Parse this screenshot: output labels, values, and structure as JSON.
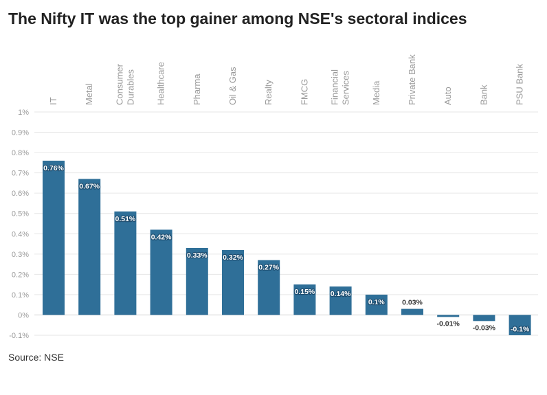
{
  "title": "The Nifty IT was the top gainer among NSE's sectoral indices",
  "source": "Source: NSE",
  "colors": {
    "bar": "#2f6f98",
    "grid": "#e6e6e6",
    "zero": "#cfcfcf"
  },
  "chart_data": {
    "type": "bar",
    "categories": [
      [
        "IT"
      ],
      [
        "Metal"
      ],
      [
        "Consumer",
        "Durables"
      ],
      [
        "Healthcare"
      ],
      [
        "Pharma"
      ],
      [
        "Oil & Gas"
      ],
      [
        "Realty"
      ],
      [
        "FMCG"
      ],
      [
        "Financial",
        "Services"
      ],
      [
        "Media"
      ],
      [
        "Private Bank"
      ],
      [
        "Auto"
      ],
      [
        "Bank"
      ],
      [
        "PSU Bank"
      ]
    ],
    "values": [
      0.76,
      0.67,
      0.51,
      0.42,
      0.33,
      0.32,
      0.27,
      0.15,
      0.14,
      0.1,
      0.03,
      -0.01,
      -0.03,
      -0.1
    ],
    "data_labels": [
      "0.76%",
      "0.67%",
      "0.51%",
      "0.42%",
      "0.33%",
      "0.32%",
      "0.27%",
      "0.15%",
      "0.14%",
      "0.1%",
      "0.03%",
      "-0.01%",
      "-0.03%",
      "-0.1%"
    ],
    "ylim": [
      -0.1,
      1
    ],
    "yticks": [
      1,
      0.9,
      0.8,
      0.7,
      0.6,
      0.5,
      0.4,
      0.3,
      0.2,
      0.1,
      0,
      -0.1
    ],
    "ytick_labels": [
      "1%",
      "0.9%",
      "0.8%",
      "0.7%",
      "0.6%",
      "0.5%",
      "0.4%",
      "0.3%",
      "0.2%",
      "0.1%",
      "0%",
      "-0.1%"
    ],
    "xlabel": "",
    "ylabel": "",
    "grid": true,
    "legend": "none"
  }
}
